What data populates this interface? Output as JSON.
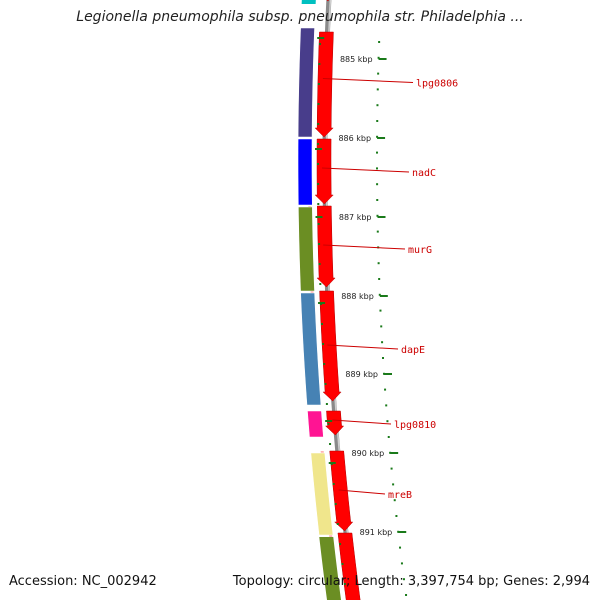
{
  "title": "Legionella pneumophila subsp. pneumophila str. Philadelphia ...",
  "accession_text": "Accession: NC_002942",
  "topology_text": "Topology: circular; Length: 3,397,754 bp; Genes: 2,994",
  "axis": {
    "unit": "kbp",
    "ticks": [
      "885 kbp",
      "886 kbp",
      "887 kbp",
      "888 kbp",
      "889 kbp",
      "890 kbp",
      "891 kbp"
    ]
  },
  "colors": {
    "backbone": "#8a8a8a",
    "forward_strand": "#ff0000",
    "tick_mark": "#1a7a1a",
    "label_text": "#cc0000"
  },
  "genes": [
    {
      "label": "lpg0806",
      "color": "#483d8b"
    },
    {
      "label": "nadC",
      "color": "#0000ff"
    },
    {
      "label": "murG",
      "color": "#6b8e23"
    },
    {
      "label": "dapE",
      "color": "#4682b4"
    },
    {
      "label": "lpg0810",
      "color": "#ff1493"
    },
    {
      "label": "mreB",
      "color": "#f0e68c"
    }
  ]
}
